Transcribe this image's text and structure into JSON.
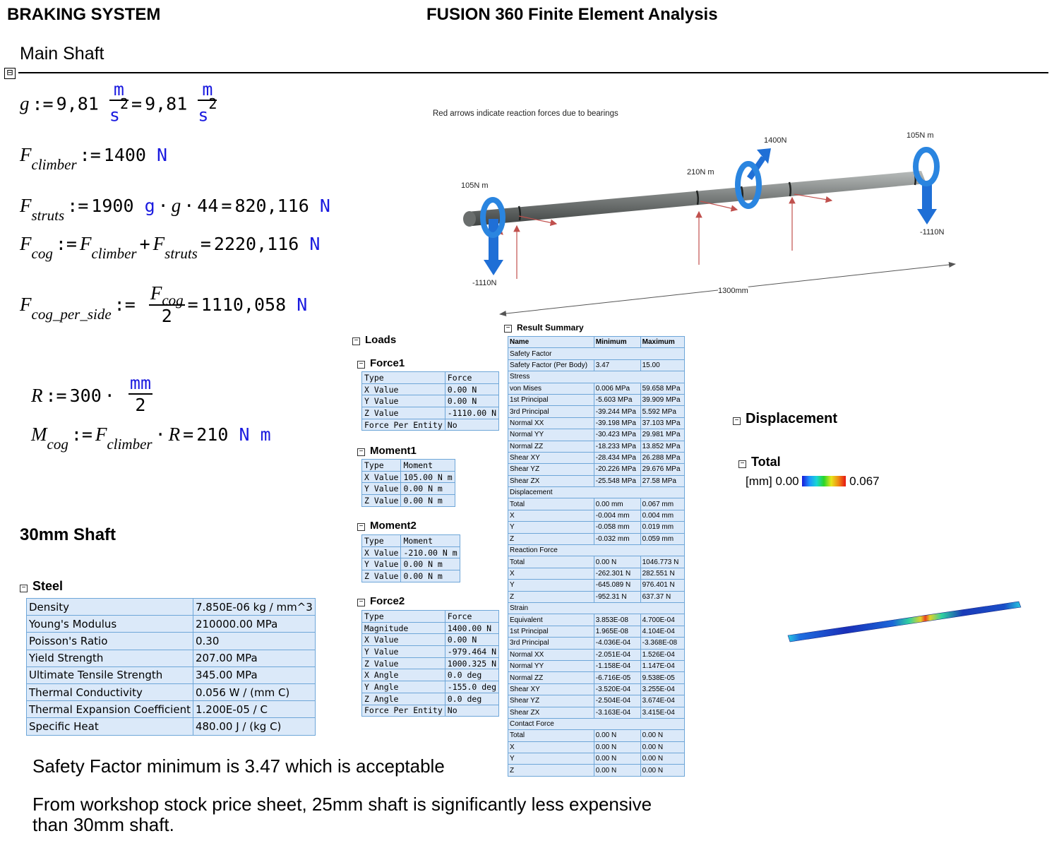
{
  "header": {
    "left_title": "BRAKING SYSTEM",
    "center_title": "FUSION 360 Finite Element Analysis"
  },
  "main_shaft": {
    "title": "Main Shaft",
    "collapse_icon": "⊟"
  },
  "equations": {
    "g": {
      "var": "g",
      "assign": ":=",
      "value": "9,81",
      "unit_num": "m",
      "unit_den": "s",
      "unit_exp": "2",
      "eq": "=",
      "result": "9,81"
    },
    "f_climber": {
      "var": "F",
      "sub": "climber",
      "assign": ":=",
      "value": "1400",
      "unit": "N"
    },
    "f_struts": {
      "var": "F",
      "sub": "struts",
      "assign": ":=",
      "expr_num": "1900",
      "expr_g1": "g",
      "dot": "·",
      "expr_g2": "g",
      "expr_44": "44",
      "eq": "=",
      "result": "820,116",
      "unit": "N"
    },
    "f_cog": {
      "var": "F",
      "sub": "cog",
      "assign": ":=",
      "t1_var": "F",
      "t1_sub": "climber",
      "plus": "+",
      "t2_var": "F",
      "t2_sub": "struts",
      "eq": "=",
      "result": "2220,116",
      "unit": "N"
    },
    "f_cog_side": {
      "var": "F",
      "sub": "cog_per_side",
      "assign": ":=",
      "num_var": "F",
      "num_sub": "cog",
      "den": "2",
      "eq": "=",
      "result": "1110,058",
      "unit": "N"
    },
    "r": {
      "var": "R",
      "assign": ":=",
      "value": "300",
      "dot": "·",
      "unit_num": "mm",
      "den": "2"
    },
    "m_cog": {
      "var": "M",
      "sub": "cog",
      "assign": ":=",
      "t1_var": "F",
      "t1_sub": "climber",
      "dot": "·",
      "t2": "R",
      "eq": "=",
      "result": "210",
      "unit1": "N",
      "unit2": "m"
    }
  },
  "diagram": {
    "caption": "Red arrows indicate reaction forces due to bearings",
    "labels": {
      "moment_left": "105N m",
      "moment_mid": "210N m",
      "force_top": "1400N",
      "moment_right": "105N m",
      "reaction_left": "-1110N",
      "reaction_right": "-1110N",
      "length": "1300mm"
    },
    "colors": {
      "arrow_blue": "#1f6fd6",
      "reaction_red": "#c0504d",
      "shaft": "#7d8180"
    }
  },
  "shaft_30mm": {
    "title": "30mm Shaft"
  },
  "steel": {
    "title": "Steel",
    "rows": [
      [
        "Density",
        "7.850E-06 kg / mm^3"
      ],
      [
        "Young's Modulus",
        "210000.00 MPa"
      ],
      [
        "Poisson's Ratio",
        "0.30"
      ],
      [
        "Yield Strength",
        "207.00 MPa"
      ],
      [
        "Ultimate Tensile Strength",
        "345.00 MPa"
      ],
      [
        "Thermal Conductivity",
        "0.056 W / (mm C)"
      ],
      [
        "Thermal Expansion Coefficient",
        "1.200E-05 / C"
      ],
      [
        "Specific Heat",
        "480.00 J / (kg C)"
      ]
    ]
  },
  "loads": {
    "title": "Loads",
    "force1": {
      "title": "Force1",
      "rows": [
        [
          "Type",
          "Force"
        ],
        [
          "X Value",
          "0.00 N"
        ],
        [
          "Y Value",
          "0.00 N"
        ],
        [
          "Z Value",
          "-1110.00 N"
        ],
        [
          "Force Per Entity",
          "No"
        ]
      ]
    },
    "moment1": {
      "title": "Moment1",
      "rows": [
        [
          "Type",
          "Moment"
        ],
        [
          "X Value",
          "105.00 N m"
        ],
        [
          "Y Value",
          "0.00 N m"
        ],
        [
          "Z Value",
          "0.00 N m"
        ]
      ]
    },
    "moment2": {
      "title": "Moment2",
      "rows": [
        [
          "Type",
          "Moment"
        ],
        [
          "X Value",
          "-210.00 N m"
        ],
        [
          "Y Value",
          "0.00 N m"
        ],
        [
          "Z Value",
          "0.00 N m"
        ]
      ]
    },
    "force2": {
      "title": "Force2",
      "rows": [
        [
          "Type",
          "Force"
        ],
        [
          "Magnitude",
          "1400.00 N"
        ],
        [
          "X Value",
          "0.00 N"
        ],
        [
          "Y Value",
          "-979.464 N"
        ],
        [
          "Z Value",
          "1000.325 N"
        ],
        [
          "X Angle",
          "0.0 deg"
        ],
        [
          "Y Angle",
          "-155.0 deg"
        ],
        [
          "Z Angle",
          "0.0 deg"
        ],
        [
          "Force Per Entity",
          "No"
        ]
      ]
    }
  },
  "result_summary": {
    "title": "Result Summary",
    "header": [
      "Name",
      "Minimum",
      "Maximum"
    ],
    "rows": [
      [
        "Safety Factor",
        "",
        ""
      ],
      [
        "Safety Factor (Per Body)",
        "3.47",
        "15.00"
      ],
      [
        "Stress",
        "",
        ""
      ],
      [
        "von Mises",
        "0.006 MPa",
        "59.658 MPa"
      ],
      [
        "1st Principal",
        "-5.603 MPa",
        "39.909 MPa"
      ],
      [
        "3rd Principal",
        "-39.244 MPa",
        "5.592 MPa"
      ],
      [
        "Normal XX",
        "-39.198 MPa",
        "37.103 MPa"
      ],
      [
        "Normal YY",
        "-30.423 MPa",
        "29.981 MPa"
      ],
      [
        "Normal ZZ",
        "-18.233 MPa",
        "13.852 MPa"
      ],
      [
        "Shear XY",
        "-28.434 MPa",
        "26.288 MPa"
      ],
      [
        "Shear YZ",
        "-20.226 MPa",
        "29.676 MPa"
      ],
      [
        "Shear ZX",
        "-25.548 MPa",
        "27.58 MPa"
      ],
      [
        "Displacement",
        "",
        ""
      ],
      [
        "Total",
        "0.00 mm",
        "0.067 mm"
      ],
      [
        "X",
        "-0.004 mm",
        "0.004 mm"
      ],
      [
        "Y",
        "-0.058 mm",
        "0.019 mm"
      ],
      [
        "Z",
        "-0.032 mm",
        "0.059 mm"
      ],
      [
        "Reaction Force",
        "",
        ""
      ],
      [
        "Total",
        "0.00 N",
        "1046.773 N"
      ],
      [
        "X",
        "-262.301 N",
        "282.551 N"
      ],
      [
        "Y",
        "-645.089 N",
        "976.401 N"
      ],
      [
        "Z",
        "-952.31 N",
        "637.37 N"
      ],
      [
        "Strain",
        "",
        ""
      ],
      [
        "Equivalent",
        "3.853E-08",
        "4.700E-04"
      ],
      [
        "1st Principal",
        "1.965E-08",
        "4.104E-04"
      ],
      [
        "3rd Principal",
        "-4.036E-04",
        "-3.368E-08"
      ],
      [
        "Normal XX",
        "-2.051E-04",
        "1.526E-04"
      ],
      [
        "Normal YY",
        "-1.158E-04",
        "1.147E-04"
      ],
      [
        "Normal ZZ",
        "-6.716E-05",
        "9.538E-05"
      ],
      [
        "Shear XY",
        "-3.520E-04",
        "3.255E-04"
      ],
      [
        "Shear YZ",
        "-2.504E-04",
        "3.674E-04"
      ],
      [
        "Shear ZX",
        "-3.163E-04",
        "3.415E-04"
      ],
      [
        "Contact Force",
        "",
        ""
      ],
      [
        "Total",
        "0.00 N",
        "0.00 N"
      ],
      [
        "X",
        "0.00 N",
        "0.00 N"
      ],
      [
        "Y",
        "0.00 N",
        "0.00 N"
      ],
      [
        "Z",
        "0.00 N",
        "0.00 N"
      ]
    ]
  },
  "displacement": {
    "title": "Displacement",
    "total_title": "Total",
    "legend_unit": "[mm]",
    "legend_min": "0.00",
    "legend_max": "0.067"
  },
  "notes": {
    "safety": "Safety Factor minimum is 3.47 which is acceptable",
    "cost_line1": "From workshop stock price sheet, 25mm shaft is significantly less expensive",
    "cost_line2": "than 30mm shaft."
  }
}
